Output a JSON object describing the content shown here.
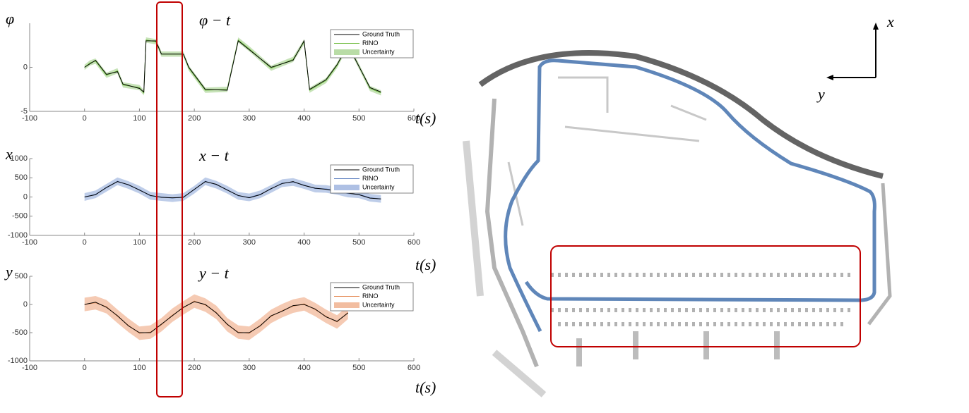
{
  "chart_data": [
    {
      "type": "line",
      "title": "φ − t",
      "y_label": "φ",
      "x_label": "t(s)",
      "xlim": [
        -100,
        600
      ],
      "xticks": [
        -100,
        0,
        100,
        200,
        300,
        400,
        500,
        600
      ],
      "ylim": [
        -5,
        5
      ],
      "yticks": [
        -5,
        0
      ],
      "x": [
        0,
        10,
        20,
        40,
        60,
        70,
        100,
        108,
        112,
        130,
        140,
        180,
        190,
        220,
        260,
        280,
        300,
        340,
        380,
        400,
        410,
        440,
        460,
        480,
        520,
        540
      ],
      "series": [
        {
          "name": "Ground Truth",
          "color": "#000000",
          "values": [
            0,
            0.4,
            0.8,
            -0.8,
            -0.5,
            -1.9,
            -2.4,
            -2.8,
            3,
            3,
            1.5,
            1.5,
            0,
            -2.5,
            -2.6,
            3,
            2,
            0,
            0.8,
            3,
            -2.5,
            -1.4,
            0.3,
            2.5,
            -2.3,
            -2.8
          ]
        },
        {
          "name": "RINO",
          "color": "#6cbb3c",
          "values": [
            0,
            0.5,
            0.7,
            -0.9,
            -0.4,
            -2,
            -2.3,
            -2.9,
            3.1,
            2.9,
            1.5,
            1.5,
            -0.1,
            -2.6,
            -2.5,
            3.1,
            2.1,
            -0.1,
            0.9,
            2.9,
            -2.6,
            -1.5,
            0.2,
            2.6,
            -2.4,
            -2.9
          ]
        },
        {
          "name": "Uncertainty",
          "color": "#b9dca6",
          "lower": [
            -0.3,
            0.2,
            0.4,
            -1.2,
            -0.7,
            -2.3,
            -2.6,
            -3.2,
            2.8,
            2.6,
            1.2,
            1.2,
            -0.4,
            -2.9,
            -2.8,
            2.8,
            1.8,
            -0.4,
            0.6,
            2.6,
            -2.9,
            -1.8,
            -0.1,
            2.3,
            -2.7,
            -3.2
          ],
          "upper": [
            0.3,
            0.8,
            1,
            -0.6,
            -0.1,
            -1.7,
            -2,
            -2.6,
            3.4,
            3.2,
            1.8,
            1.8,
            0.2,
            -2.3,
            -2.2,
            3.4,
            2.4,
            0.2,
            1.2,
            3.2,
            -2.3,
            -1.2,
            0.5,
            2.9,
            -2.1,
            -2.6
          ]
        }
      ]
    },
    {
      "type": "line",
      "title": "x − t",
      "y_label": "x",
      "x_label": "t(s)",
      "xlim": [
        -100,
        600
      ],
      "xticks": [
        -100,
        0,
        100,
        200,
        300,
        400,
        500,
        600
      ],
      "ylim": [
        -1000,
        1000
      ],
      "yticks": [
        -1000,
        -500,
        0,
        500,
        1000
      ],
      "x": [
        0,
        20,
        40,
        60,
        80,
        100,
        120,
        140,
        160,
        180,
        200,
        220,
        240,
        260,
        280,
        300,
        320,
        340,
        360,
        380,
        400,
        420,
        440,
        460,
        480,
        500,
        520,
        540
      ],
      "series": [
        {
          "name": "Ground Truth",
          "color": "#000000",
          "values": [
            0,
            60,
            250,
            400,
            320,
            180,
            40,
            -10,
            -20,
            -10,
            200,
            400,
            330,
            180,
            40,
            -20,
            60,
            220,
            350,
            400,
            300,
            230,
            200,
            150,
            100,
            60,
            -30,
            -50
          ]
        },
        {
          "name": "RINO",
          "color": "#5b7fc0",
          "values": [
            0,
            70,
            240,
            410,
            310,
            190,
            30,
            0,
            -30,
            0,
            190,
            410,
            320,
            190,
            30,
            -10,
            70,
            210,
            360,
            390,
            310,
            220,
            210,
            160,
            90,
            70,
            -20,
            -50
          ]
        },
        {
          "name": "Uncertainty",
          "color": "#aec0e4",
          "lower": [
            -100,
            -30,
            140,
            310,
            210,
            90,
            -70,
            -100,
            -130,
            -100,
            90,
            310,
            220,
            90,
            -70,
            -110,
            -30,
            110,
            260,
            290,
            210,
            120,
            110,
            60,
            -10,
            -30,
            -120,
            -150
          ],
          "upper": [
            100,
            170,
            340,
            510,
            410,
            290,
            130,
            100,
            70,
            100,
            290,
            510,
            420,
            290,
            130,
            90,
            170,
            310,
            460,
            490,
            410,
            320,
            310,
            260,
            190,
            170,
            80,
            50
          ]
        }
      ]
    },
    {
      "type": "line",
      "title": "y − t",
      "y_label": "y",
      "x_label": "t(s)",
      "xlim": [
        -100,
        600
      ],
      "xticks": [
        -100,
        0,
        100,
        200,
        300,
        400,
        500,
        600
      ],
      "ylim": [
        -1000,
        500
      ],
      "yticks": [
        -1000,
        -500,
        0,
        500
      ],
      "x": [
        0,
        20,
        40,
        60,
        80,
        100,
        120,
        140,
        160,
        180,
        200,
        220,
        240,
        260,
        280,
        300,
        320,
        340,
        360,
        380,
        400,
        420,
        440,
        460,
        480
      ],
      "series": [
        {
          "name": "Ground Truth",
          "color": "#000000",
          "values": [
            0,
            40,
            -50,
            -200,
            -380,
            -500,
            -500,
            -350,
            -200,
            -50,
            50,
            0,
            -150,
            -350,
            -500,
            -500,
            -380,
            -200,
            -120,
            -20,
            0,
            -80,
            -220,
            -300,
            -150
          ]
        },
        {
          "name": "RINO",
          "color": "#e58a54",
          "values": [
            0,
            30,
            -40,
            -210,
            -370,
            -510,
            -490,
            -360,
            -190,
            -60,
            60,
            -10,
            -140,
            -360,
            -490,
            -510,
            -370,
            -210,
            -110,
            -30,
            10,
            -90,
            -210,
            -310,
            -140
          ]
        },
        {
          "name": "Uncertainty",
          "color": "#f2bda0",
          "lower": [
            -120,
            -90,
            -160,
            -330,
            -490,
            -630,
            -610,
            -480,
            -310,
            -180,
            -60,
            -130,
            -260,
            -480,
            -610,
            -630,
            -490,
            -330,
            -230,
            -150,
            -110,
            -210,
            -330,
            -430,
            -260
          ],
          "upper": [
            120,
            150,
            80,
            -90,
            -250,
            -390,
            -370,
            -240,
            -70,
            60,
            180,
            110,
            -20,
            -240,
            -370,
            -390,
            -250,
            -90,
            10,
            90,
            130,
            30,
            -90,
            -190,
            -20
          ]
        }
      ]
    }
  ],
  "map": {
    "x_label": "x",
    "y_label": "y"
  }
}
